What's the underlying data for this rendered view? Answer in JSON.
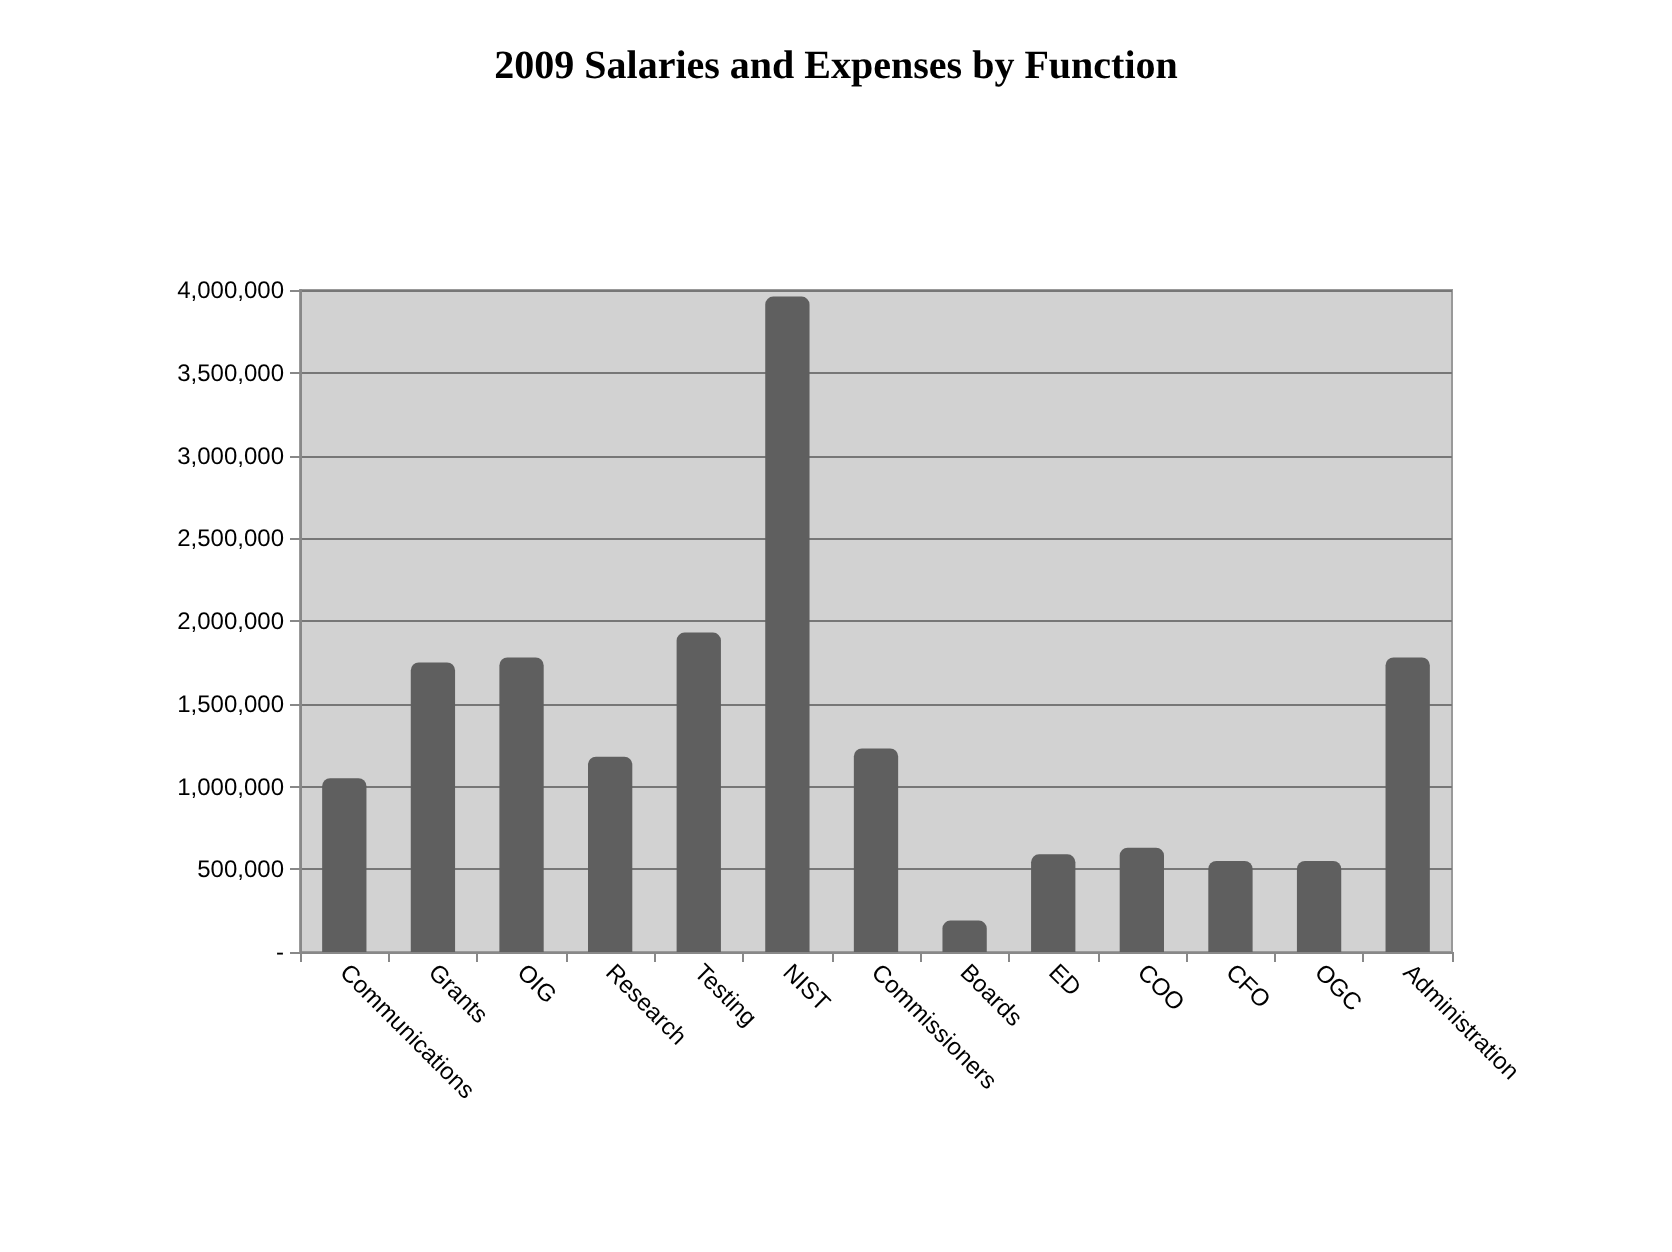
{
  "chart_data": {
    "type": "bar",
    "title": "2009 Salaries and Expenses by Function",
    "categories": [
      "Communications",
      "Grants",
      "OIG",
      "Research",
      "Testing",
      "NIST",
      "Commissioners",
      "Boards",
      "ED",
      "COO",
      "CFO",
      "OGC",
      "Administration"
    ],
    "values": [
      1050000,
      1750000,
      1780000,
      1180000,
      1930000,
      3960000,
      1230000,
      190000,
      590000,
      630000,
      550000,
      550000,
      1780000
    ],
    "color": "#5f5f5f",
    "ylim": [
      0,
      4000000
    ],
    "yticks": [
      {
        "value": 0,
        "label": "-"
      },
      {
        "value": 500000,
        "label": "500,000"
      },
      {
        "value": 1000000,
        "label": "1,000,000"
      },
      {
        "value": 1500000,
        "label": "1,500,000"
      },
      {
        "value": 2000000,
        "label": "2,000,000"
      },
      {
        "value": 2500000,
        "label": "2,500,000"
      },
      {
        "value": 3000000,
        "label": "3,000,000"
      },
      {
        "value": 3500000,
        "label": "3,500,000"
      },
      {
        "value": 4000000,
        "label": "4,000,000"
      }
    ],
    "grid": "y"
  }
}
